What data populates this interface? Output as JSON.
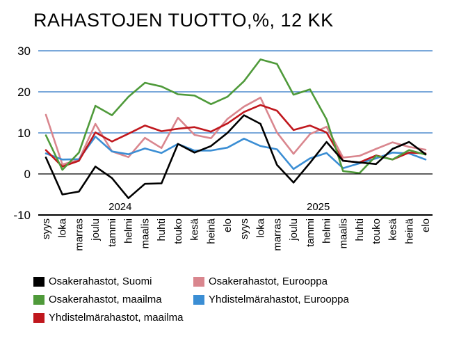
{
  "title": "RAHASTOJEN TUOTTO,%, 12 KK",
  "chart_data": {
    "type": "line",
    "title": "RAHASTOJEN TUOTTO,%, 12 KK",
    "xlabel": "",
    "ylabel": "",
    "ylim": [
      -10,
      30
    ],
    "yticks": [
      "30",
      "20",
      "10",
      "0",
      "-10"
    ],
    "grid": "horizontal",
    "legend_position": "bottom",
    "categories": [
      "syys",
      "loka",
      "marras",
      "joulu",
      "tammi",
      "helmi",
      "maalis",
      "huhti",
      "touko",
      "kesä",
      "heinä",
      "elo",
      "syys",
      "loka",
      "marras",
      "joulu",
      "tammi",
      "helmi",
      "maalis",
      "huhti",
      "touko",
      "kesä",
      "heinä",
      "elo"
    ],
    "year_labels": [
      {
        "label": "2024",
        "category_index": 4.5
      },
      {
        "label": "2025",
        "category_index": 16.5
      }
    ],
    "series": [
      {
        "name": "Osakerahastot, Suomi",
        "color": "#000000",
        "values": [
          4,
          -5,
          -4.3,
          1.8,
          -1,
          -5.9,
          -2.4,
          -2.3,
          7.3,
          5.2,
          6.8,
          10,
          14.3,
          12.2,
          2.2,
          -2.1,
          2.7,
          7.8,
          3.2,
          2.8,
          2.4,
          6.1,
          7.8,
          4.8
        ]
      },
      {
        "name": "Osakerahastot, maailma",
        "color": "#4f9a3a",
        "values": [
          9.4,
          1,
          5.2,
          16.6,
          14.3,
          18.8,
          22.2,
          21.3,
          19.4,
          19.1,
          17,
          18.8,
          22.6,
          27.9,
          26.8,
          19.3,
          20.6,
          13.3,
          0.7,
          0.2,
          4.4,
          3.5,
          5.8,
          4.7
        ]
      },
      {
        "name": "Yhdistelmärahastot, maailma",
        "color": "#c0171d",
        "values": [
          5.8,
          1.8,
          3.2,
          10.1,
          7.9,
          9.8,
          11.8,
          10.4,
          11,
          11.4,
          10.3,
          12.3,
          15.1,
          16.8,
          15.4,
          10.7,
          11.8,
          10.1,
          3.2,
          2.8,
          4.5,
          3.5,
          5.2,
          5
        ]
      },
      {
        "name": "Osakerahastot, Eurooppa",
        "color": "#d9868e",
        "values": [
          14.4,
          2.3,
          3.4,
          12.2,
          5.5,
          4.1,
          8.8,
          6.3,
          13.7,
          9.5,
          8.7,
          13.4,
          16.4,
          18.6,
          10.1,
          4.9,
          9.7,
          11.5,
          4,
          4.4,
          6.1,
          7.7,
          6.6,
          5.9
        ]
      },
      {
        "name": "Yhdistelmärahastot, Eurooppa",
        "color": "#3b8ed4",
        "values": [
          5,
          3.5,
          3.6,
          9.1,
          5.5,
          4.8,
          6.2,
          5.1,
          7.3,
          5.7,
          5.7,
          6.4,
          8.6,
          6.8,
          6,
          1.2,
          3.8,
          5.1,
          1.4,
          2.6,
          3.8,
          5.2,
          5,
          3.5
        ]
      }
    ]
  },
  "legend": [
    {
      "label": "Osakerahastot, Suomi",
      "color": "#000000"
    },
    {
      "label": "Osakerahastot, Eurooppa",
      "color": "#d9868e"
    },
    {
      "label": "Osakerahastot, maailma",
      "color": "#4f9a3a"
    },
    {
      "label": "Yhdistelmärahastot, Eurooppa",
      "color": "#3b8ed4"
    },
    {
      "label": "Yhdistelmärahastot, maailma",
      "color": "#c0171d"
    }
  ]
}
